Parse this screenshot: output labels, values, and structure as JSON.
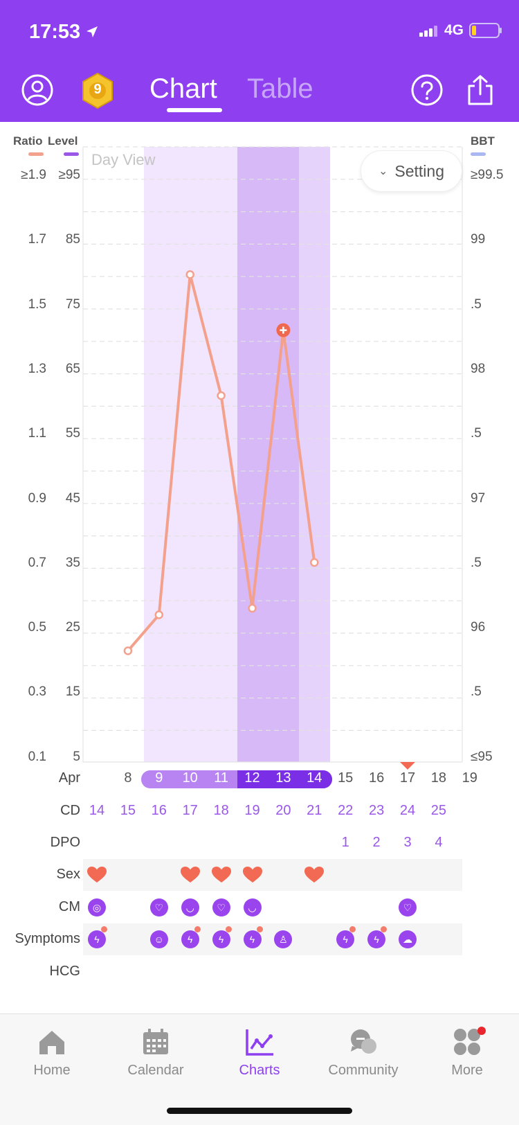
{
  "status_bar": {
    "time": "17:53",
    "network": "4G"
  },
  "header": {
    "badge_number": "9",
    "tabs": [
      {
        "label": "Chart",
        "active": true
      },
      {
        "label": "Table",
        "active": false
      }
    ],
    "colors": {
      "background": "#8e3ff0",
      "active": "#ffffff",
      "inactive": "#c8a6f7"
    }
  },
  "chart": {
    "view_label": "Day View",
    "setting_label": "Setting",
    "left_headers": {
      "ratio": "Ratio",
      "level": "Level"
    },
    "right_header": "BBT",
    "ratio_ticks": [
      "≥1.9",
      "1.7",
      "1.5",
      "1.3",
      "1.1",
      "0.9",
      "0.7",
      "0.5",
      "0.3",
      "0.1"
    ],
    "level_ticks": [
      "≥95",
      "85",
      "75",
      "65",
      "55",
      "45",
      "35",
      "25",
      "15",
      "5"
    ],
    "bbt_ticks": [
      "≥99.5",
      "99",
      ".5",
      "98",
      ".5",
      "97",
      ".5",
      "96",
      ".5",
      "≤95"
    ],
    "colors": {
      "line": "#f3a08c",
      "ratio_legend": "#f3a08c",
      "level_legend": "#9a57e8",
      "bbt_legend": "#a9b7f3",
      "fertile_light": "#f1e6fd",
      "fertile_peak": "#d7b9f8",
      "fertile_mid": "#e6d3fb"
    }
  },
  "chart_data": {
    "type": "line",
    "x": [
      "Apr 8",
      "Apr 9",
      "Apr 10",
      "Apr 11",
      "Apr 12",
      "Apr 13",
      "Apr 14"
    ],
    "series": [
      {
        "values": [
          0.44,
          0.55,
          1.59,
          1.22,
          0.57,
          1.42,
          0.71
        ],
        "highlight_index": 5
      }
    ],
    "ylim": [
      0.1,
      1.9
    ],
    "ylim_level": [
      5,
      95
    ],
    "ylim_bbt": [
      95,
      99.5
    ],
    "grid": true
  },
  "rows": {
    "month_label": "Apr",
    "dates": [
      "",
      "8",
      "9",
      "10",
      "11",
      "12",
      "13",
      "14",
      "15",
      "16",
      "17",
      "18",
      "19"
    ],
    "fertile_dates": [
      "9",
      "10",
      "11",
      "12",
      "13",
      "14"
    ],
    "peak_dates": [
      "12",
      "13",
      "14"
    ],
    "period_marker_date": "17",
    "cd_label": "CD",
    "cd": [
      "14",
      "15",
      "16",
      "17",
      "18",
      "19",
      "20",
      "21",
      "22",
      "23",
      "24",
      "25"
    ],
    "dpo_label": "DPO",
    "dpo": [
      "",
      "",
      "",
      "",
      "",
      "",
      "",
      "",
      "1",
      "2",
      "3",
      "4"
    ],
    "sex_label": "Sex",
    "sex": [
      true,
      false,
      false,
      true,
      true,
      true,
      false,
      true,
      false,
      false,
      false,
      false
    ],
    "cm_label": "CM",
    "cm": [
      "eggwhite-icon",
      "",
      "watery-icon",
      "creamy-icon",
      "watery-icon",
      "creamy-icon",
      "",
      "",
      "",
      "",
      "watery-icon",
      ""
    ],
    "symptoms_label": "Symptoms",
    "symptoms": [
      "cramp-icon",
      "",
      "face-icon",
      "cramp-icon",
      "cramp-icon",
      "cramp-icon",
      "person-icon",
      "",
      "cramp-icon",
      "cramp-icon",
      "sleep-icon",
      ""
    ],
    "symptom_dots": [
      true,
      false,
      false,
      true,
      true,
      true,
      false,
      false,
      true,
      true,
      false,
      false
    ],
    "hcg_label": "HCG",
    "colors": {
      "heart": "#f26a53",
      "icon": "#9a44ee",
      "dot": "#f47c6c",
      "marker": "#f26a53"
    }
  },
  "tabbar": {
    "items": [
      {
        "label": "Home",
        "icon": "home-icon",
        "active": false
      },
      {
        "label": "Calendar",
        "icon": "calendar-icon",
        "active": false
      },
      {
        "label": "Charts",
        "icon": "charts-icon",
        "active": true
      },
      {
        "label": "Community",
        "icon": "community-icon",
        "active": false
      },
      {
        "label": "More",
        "icon": "more-icon",
        "active": false,
        "badge": true
      }
    ]
  }
}
